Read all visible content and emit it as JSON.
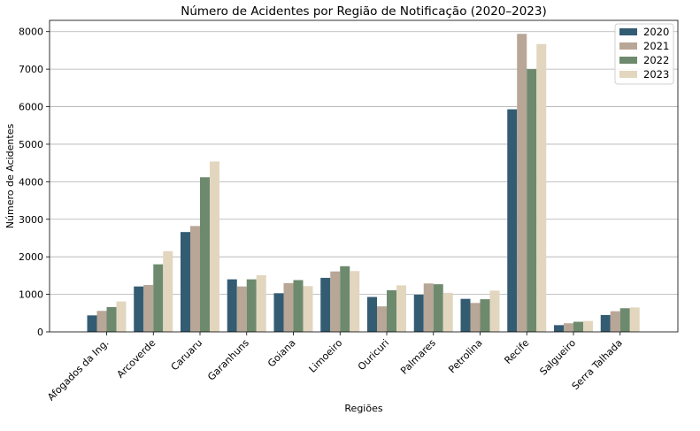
{
  "chart_data": {
    "type": "bar",
    "title": "Número de Acidentes por Região de Notificação (2020–2023)",
    "xlabel": "Regiões",
    "ylabel": "Número de Acidentes",
    "ylim": [
      0,
      8300
    ],
    "yticks": [
      0,
      1000,
      2000,
      3000,
      4000,
      5000,
      6000,
      7000,
      8000
    ],
    "grid": "horizontal",
    "legend_position": "top-right",
    "categories": [
      "Afogados da Ing.",
      "Arcoverde",
      "Caruaru",
      "Garanhuns",
      "Goiana",
      "Limoeiro",
      "Ouricuri",
      "Palmares",
      "Petrolina",
      "Recife",
      "Salgueiro",
      "Serra Talhada"
    ],
    "series": [
      {
        "name": "2020",
        "color": "#335c73",
        "values": [
          440,
          1210,
          2660,
          1400,
          1030,
          1440,
          930,
          990,
          880,
          5930,
          180,
          450
        ]
      },
      {
        "name": "2021",
        "color": "#b8a697",
        "values": [
          560,
          1250,
          2820,
          1210,
          1300,
          1610,
          680,
          1290,
          770,
          7940,
          230,
          550
        ]
      },
      {
        "name": "2022",
        "color": "#6e8a6e",
        "values": [
          660,
          1800,
          4120,
          1400,
          1380,
          1750,
          1110,
          1270,
          870,
          7000,
          270,
          630
        ]
      },
      {
        "name": "2023",
        "color": "#e2d6bf",
        "values": [
          810,
          2150,
          4540,
          1510,
          1220,
          1620,
          1240,
          1040,
          1100,
          7670,
          290,
          650
        ]
      }
    ]
  }
}
